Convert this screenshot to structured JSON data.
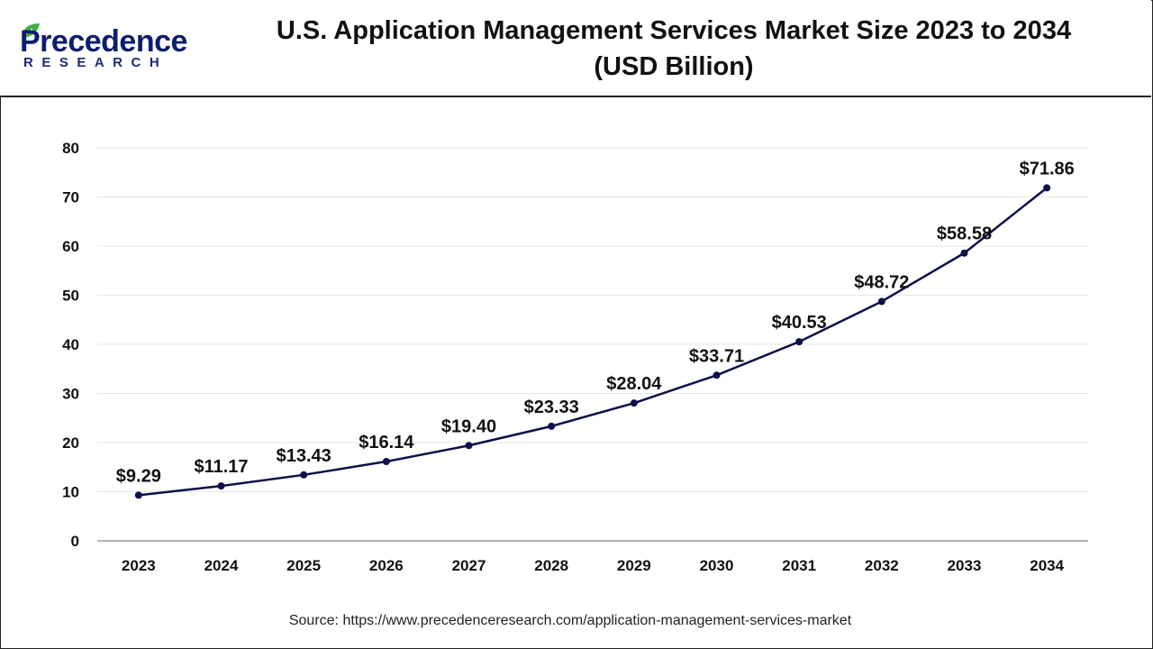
{
  "logo": {
    "main": "Precedence",
    "sub": "RESEARCH"
  },
  "title_line1": "U.S. Application Management Services Market Size 2023 to 2034",
  "title_line2": "(USD Billion)",
  "source": "Source: https://www.precedenceresearch.com/application-management-services-market",
  "colors": {
    "line": "#0d0f4a",
    "grid": "#e6e6e6",
    "axis": "#9a9a9a",
    "text": "#111111",
    "brand": "#0d1e6e",
    "leaf": "#3cb043"
  },
  "chart_data": {
    "type": "line",
    "categories": [
      "2023",
      "2024",
      "2025",
      "2026",
      "2027",
      "2028",
      "2029",
      "2030",
      "2031",
      "2032",
      "2033",
      "2034"
    ],
    "values": [
      9.29,
      11.17,
      13.43,
      16.14,
      19.4,
      23.33,
      28.04,
      33.71,
      40.53,
      48.72,
      58.58,
      71.86
    ],
    "data_labels": [
      "$9.29",
      "$11.17",
      "$13.43",
      "$16.14",
      "$19.40",
      "$23.33",
      "$28.04",
      "$33.71",
      "$40.53",
      "$48.72",
      "$58.58",
      "$71.86"
    ],
    "ylim": [
      0,
      80
    ],
    "yticks": [
      0,
      10,
      20,
      30,
      40,
      50,
      60,
      70,
      80
    ],
    "grid": true,
    "xlabel": "",
    "ylabel": ""
  }
}
